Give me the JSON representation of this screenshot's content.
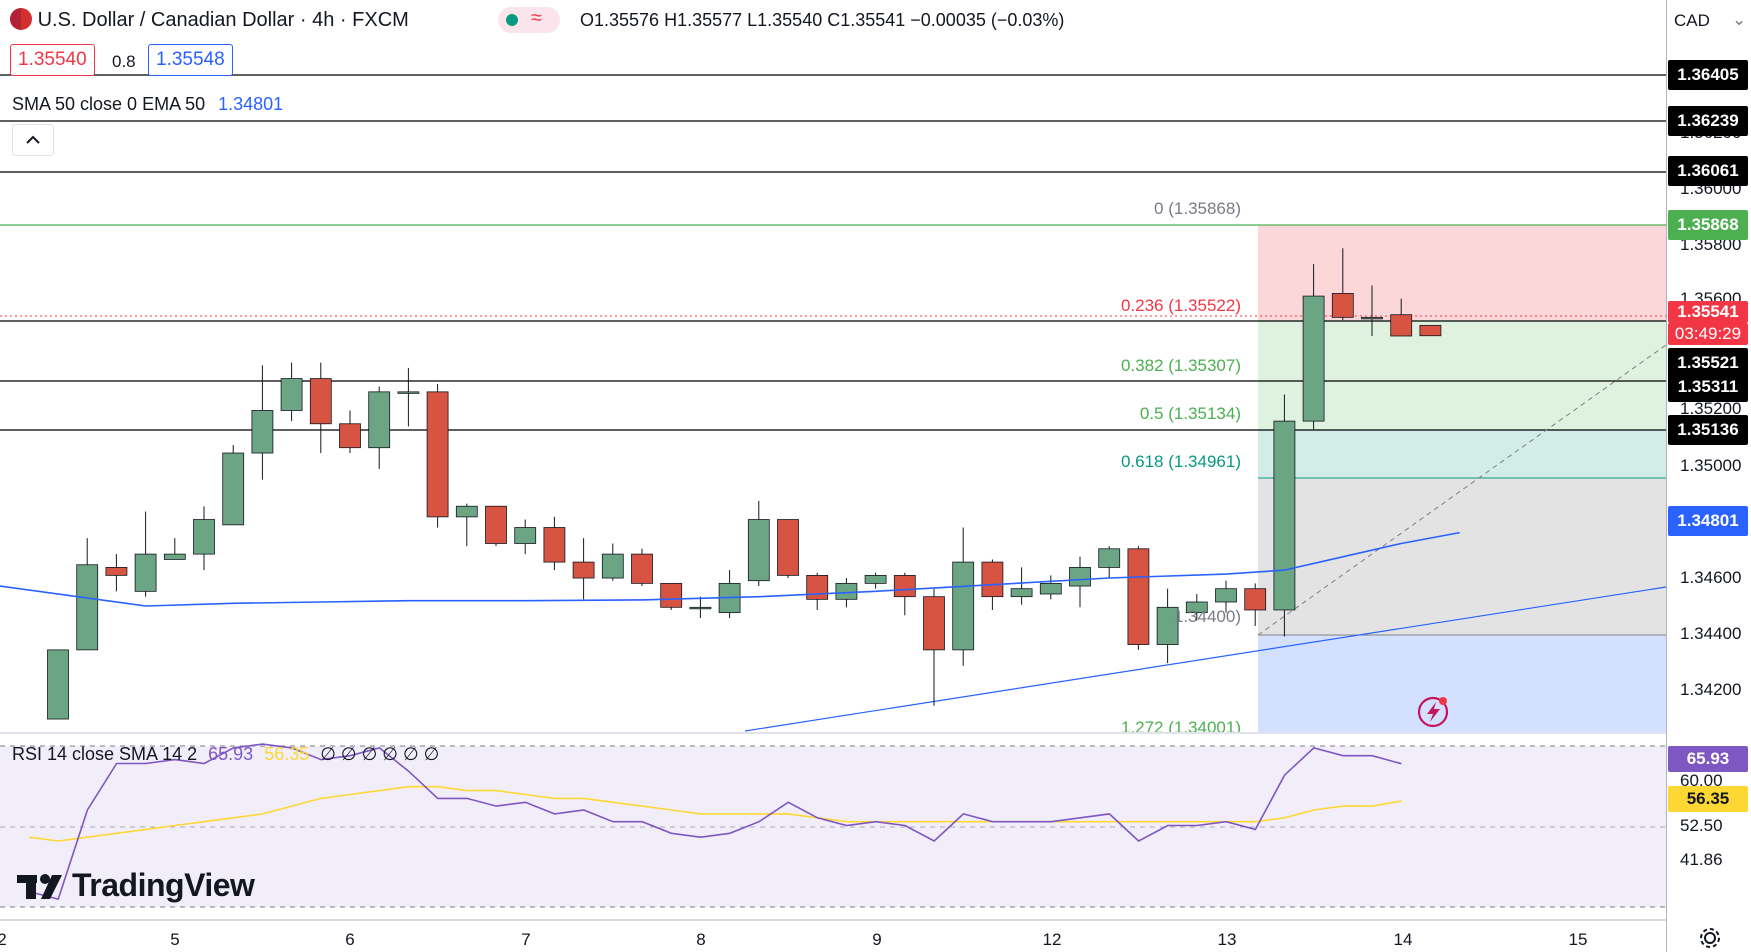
{
  "header": {
    "title": "U.S. Dollar / Canadian Dollar · 4h · FXCM",
    "ohlc": "O1.35576  H1.35577  L1.35540  C1.35541  −0.00035 (−0.03%)",
    "bid": "1.35540",
    "spread": "0.8",
    "ask": "1.35548",
    "ma_indicator_label": "SMA 50 close 0 EMA 50",
    "ma_indicator_value": "1.34801",
    "collapse_icon": "chevron-up-icon",
    "currency_select": "CAD"
  },
  "rsi_panel": {
    "label": "RSI 14 close SMA 14 2",
    "rsi_value": "65.93",
    "sma_value": "56.35",
    "nulls": "∅ ∅ ∅ ∅ ∅ ∅",
    "ticks": [
      "60.00",
      "52.50",
      "41.86"
    ],
    "rsi_tag": "65.93",
    "sma_tag": "56.35"
  },
  "price_scale": {
    "ticks": [
      "1.35800",
      "1.35600",
      "1.35200",
      "1.35000",
      "1.34600",
      "1.34400",
      "1.34200",
      "1.36000",
      "1.36200"
    ],
    "tags": [
      {
        "text": "1.36405",
        "color": "#000000"
      },
      {
        "text": "1.36239",
        "color": "#000000"
      },
      {
        "text": "1.36061",
        "color": "#000000"
      },
      {
        "text": "1.35868",
        "color": "#4caf50"
      },
      {
        "text": "1.35541",
        "color": "#f23645"
      },
      {
        "text": "03:49:29",
        "color": "#f23645"
      },
      {
        "text": "1.35521",
        "color": "#000000"
      },
      {
        "text": "1.35311",
        "color": "#000000"
      },
      {
        "text": "1.35136",
        "color": "#000000"
      },
      {
        "text": "1.34801",
        "color": "#2962ff"
      }
    ]
  },
  "fib_labels": {
    "f0": "0 (1.35868)",
    "f236": "0.236 (1.35522)",
    "f382": "0.382 (1.35307)",
    "f5": "0.5 (1.35134)",
    "f618": "0.618 (1.34961)",
    "f1": "1.34400)",
    "f1272": "1.272 (1.34001)"
  },
  "x_axis": {
    "ticks": [
      "2",
      "5",
      "6",
      "7",
      "8",
      "9",
      "12",
      "13",
      "14",
      "15"
    ]
  },
  "brand": "TradingView",
  "colors": {
    "up": "#6ba583",
    "down": "#d75442",
    "sma50": "#2962ff",
    "rsi": "#7e57c2",
    "rsi_sma": "#fdd835",
    "fib_red": "#f23645",
    "fib_green": "#4caf50",
    "fib_teal": "#089981"
  },
  "chart_data": {
    "type": "candlestick",
    "title": "U.S. Dollar / Canadian Dollar · 4h · FXCM",
    "xlabel": "",
    "ylabel": "",
    "ylim": [
      1.34055,
      1.36555
    ],
    "x_tick_labels": [
      "2",
      "5",
      "6",
      "7",
      "8",
      "9",
      "12",
      "13",
      "14",
      "15"
    ],
    "candles": [
      {
        "o": 1.341,
        "h": 1.3436,
        "l": 1.341,
        "c": 1.3436
      },
      {
        "o": 1.3436,
        "h": 1.3478,
        "l": 1.3436,
        "c": 1.3468
      },
      {
        "o": 1.3467,
        "h": 1.3472,
        "l": 1.3458,
        "c": 1.3464
      },
      {
        "o": 1.3458,
        "h": 1.3488,
        "l": 1.3456,
        "c": 1.3472
      },
      {
        "o": 1.347,
        "h": 1.3478,
        "l": 1.347,
        "c": 1.3472
      },
      {
        "o": 1.3472,
        "h": 1.349,
        "l": 1.3466,
        "c": 1.3485
      },
      {
        "o": 1.3483,
        "h": 1.3513,
        "l": 1.3483,
        "c": 1.351
      },
      {
        "o": 1.351,
        "h": 1.3543,
        "l": 1.35,
        "c": 1.3526
      },
      {
        "o": 1.3526,
        "h": 1.3544,
        "l": 1.3522,
        "c": 1.3538
      },
      {
        "o": 1.3538,
        "h": 1.3544,
        "l": 1.351,
        "c": 1.3521
      },
      {
        "o": 1.3521,
        "h": 1.3526,
        "l": 1.351,
        "c": 1.3512
      },
      {
        "o": 1.3512,
        "h": 1.3535,
        "l": 1.3504,
        "c": 1.3533
      },
      {
        "o": 1.3533,
        "h": 1.3542,
        "l": 1.352,
        "c": 1.3533
      },
      {
        "o": 1.3533,
        "h": 1.3536,
        "l": 1.3482,
        "c": 1.3486
      },
      {
        "o": 1.3486,
        "h": 1.3491,
        "l": 1.3475,
        "c": 1.349
      },
      {
        "o": 1.349,
        "h": 1.349,
        "l": 1.3475,
        "c": 1.3476
      },
      {
        "o": 1.3476,
        "h": 1.3485,
        "l": 1.3472,
        "c": 1.3482
      },
      {
        "o": 1.3482,
        "h": 1.3486,
        "l": 1.3466,
        "c": 1.3469
      },
      {
        "o": 1.3469,
        "h": 1.3478,
        "l": 1.3455,
        "c": 1.3463
      },
      {
        "o": 1.3463,
        "h": 1.3476,
        "l": 1.3462,
        "c": 1.3472
      },
      {
        "o": 1.3472,
        "h": 1.3474,
        "l": 1.346,
        "c": 1.3461
      },
      {
        "o": 1.3461,
        "h": 1.3461,
        "l": 1.3451,
        "c": 1.3452
      },
      {
        "o": 1.3452,
        "h": 1.3456,
        "l": 1.3448,
        "c": 1.3452
      },
      {
        "o": 1.345,
        "h": 1.3466,
        "l": 1.3448,
        "c": 1.3461
      },
      {
        "o": 1.3462,
        "h": 1.3492,
        "l": 1.346,
        "c": 1.3485
      },
      {
        "o": 1.3485,
        "h": 1.3485,
        "l": 1.3463,
        "c": 1.3464
      },
      {
        "o": 1.3464,
        "h": 1.3465,
        "l": 1.3451,
        "c": 1.3455
      },
      {
        "o": 1.3455,
        "h": 1.3463,
        "l": 1.3452,
        "c": 1.3461
      },
      {
        "o": 1.3461,
        "h": 1.3465,
        "l": 1.3459,
        "c": 1.3464
      },
      {
        "o": 1.3464,
        "h": 1.3465,
        "l": 1.3449,
        "c": 1.3456
      },
      {
        "o": 1.3456,
        "h": 1.3459,
        "l": 1.3415,
        "c": 1.3436
      },
      {
        "o": 1.3436,
        "h": 1.3482,
        "l": 1.343,
        "c": 1.3469
      },
      {
        "o": 1.3469,
        "h": 1.347,
        "l": 1.3451,
        "c": 1.3456
      },
      {
        "o": 1.3456,
        "h": 1.3467,
        "l": 1.3453,
        "c": 1.3459
      },
      {
        "o": 1.3457,
        "h": 1.3464,
        "l": 1.3455,
        "c": 1.3461
      },
      {
        "o": 1.346,
        "h": 1.3471,
        "l": 1.3452,
        "c": 1.3467
      },
      {
        "o": 1.3467,
        "h": 1.3475,
        "l": 1.3463,
        "c": 1.3474
      },
      {
        "o": 1.3474,
        "h": 1.3475,
        "l": 1.3436,
        "c": 1.3438
      },
      {
        "o": 1.3438,
        "h": 1.3459,
        "l": 1.3431,
        "c": 1.3452
      },
      {
        "o": 1.345,
        "h": 1.3457,
        "l": 1.3447,
        "c": 1.3454
      },
      {
        "o": 1.3454,
        "h": 1.3462,
        "l": 1.345,
        "c": 1.3459
      },
      {
        "o": 1.3459,
        "h": 1.3461,
        "l": 1.3445,
        "c": 1.3451
      },
      {
        "o": 1.3451,
        "h": 1.3532,
        "l": 1.3441,
        "c": 1.3522
      },
      {
        "o": 1.3522,
        "h": 1.3581,
        "l": 1.3519,
        "c": 1.3569
      },
      {
        "o": 1.357,
        "h": 1.3587,
        "l": 1.356,
        "c": 1.3561
      },
      {
        "o": 1.3561,
        "h": 1.3573,
        "l": 1.3554,
        "c": 1.3561
      },
      {
        "o": 1.3562,
        "h": 1.3568,
        "l": 1.3555,
        "c": 1.3554
      },
      {
        "o": 1.3558,
        "h": 1.3558,
        "l": 1.3554,
        "c": 1.35541
      }
    ],
    "series": [
      {
        "name": "SMA 50 close 0 EMA 50",
        "type": "line",
        "last": 1.34801,
        "points_x_index": [
          -2,
          3,
          6,
          9,
          12,
          16,
          20,
          24,
          28,
          32,
          36,
          40,
          42,
          44,
          46,
          48
        ],
        "values": [
          1.346,
          1.34525,
          1.34535,
          1.3454,
          1.34545,
          1.34545,
          1.34548,
          1.3456,
          1.3458,
          1.34605,
          1.3463,
          1.34645,
          1.3466,
          1.3471,
          1.3476,
          1.34801
        ]
      }
    ],
    "horizontal_levels": [
      1.36405,
      1.36239,
      1.36061,
      1.35521,
      1.35311,
      1.35136
    ],
    "fibonacci": {
      "levels": [
        {
          "ratio": "0",
          "price": 1.35868
        },
        {
          "ratio": "0.236",
          "price": 1.35522
        },
        {
          "ratio": "0.382",
          "price": 1.35307
        },
        {
          "ratio": "0.5",
          "price": 1.35134
        },
        {
          "ratio": "0.618",
          "price": 1.34961
        },
        {
          "ratio": "1",
          "price": 1.344
        },
        {
          "ratio": "1.272",
          "price": 1.34001
        }
      ]
    },
    "trendline": {
      "from": 1.34005,
      "to": 1.34575
    },
    "rsi": {
      "ylim": [
        29.0,
        70.5
      ],
      "overbought": 70,
      "oversold": 30,
      "rsi_values": [
        33,
        31,
        54,
        66,
        66,
        67,
        66,
        70,
        71,
        70,
        67,
        68,
        70,
        64,
        57,
        57,
        55,
        56,
        53,
        54,
        51,
        51,
        48,
        47,
        48,
        51,
        56,
        52,
        50,
        51,
        50,
        46,
        53,
        51,
        51,
        51,
        52,
        53,
        46,
        50,
        50,
        51,
        49,
        63,
        70,
        68,
        68,
        65.93
      ],
      "sma_values": [
        47,
        46,
        47,
        48,
        49,
        50,
        51,
        52,
        53,
        55,
        57,
        58,
        59,
        60,
        60,
        59,
        59,
        58,
        57,
        57,
        56,
        55,
        54,
        53,
        53,
        53,
        53,
        52,
        51,
        51,
        51,
        51,
        51,
        51,
        51,
        51,
        51,
        51,
        51,
        51,
        51,
        51,
        51,
        52,
        54,
        55,
        55,
        56.35
      ]
    }
  }
}
